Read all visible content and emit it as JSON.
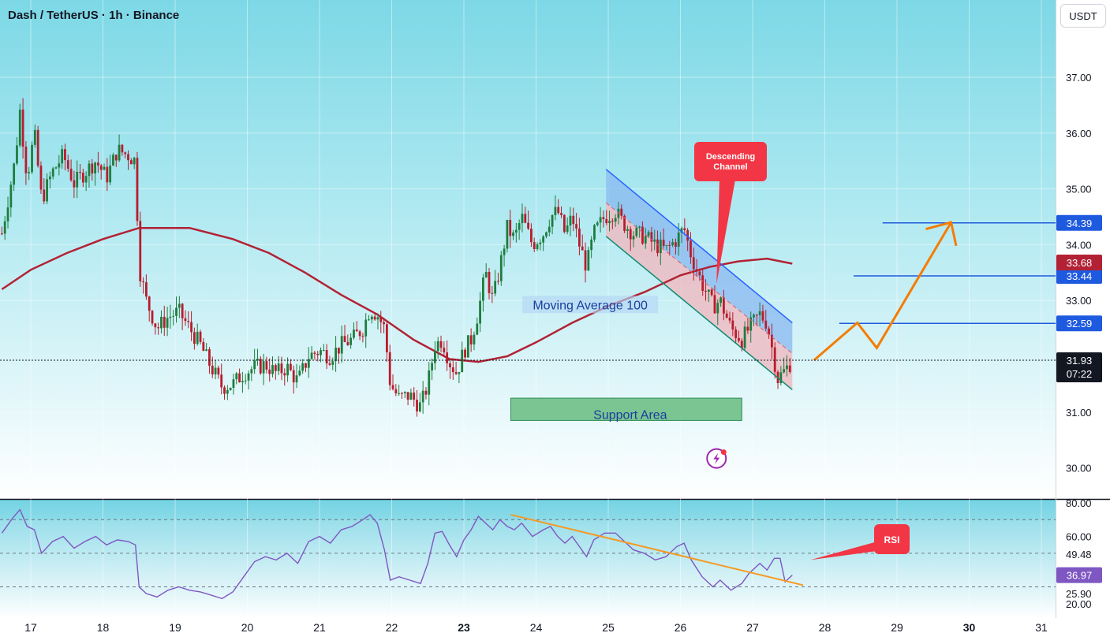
{
  "header": {
    "title": "Dash / TetherUS · 1h · Binance",
    "currency": "USDT"
  },
  "colors": {
    "background_top": "#7dd8e6",
    "background_bottom": "#ffffff",
    "candle_up": "#1e7d3e",
    "candle_down": "#b81c2c",
    "moving_average": "#b22234",
    "channel_upper_fill": "#8ab8f0",
    "channel_lower_fill": "#f0b9c0",
    "projection": "#f57c00",
    "target_lines": "#1e5adf",
    "support_fill": "#5fb878",
    "callout": "#f23645",
    "rsi_line": "#7e57c2",
    "rsi_trendline": "#f59a23"
  },
  "chart_data": [
    {
      "type": "candlestick",
      "title": "Dash / TetherUS · 1h · Binance",
      "x_tick_labels": [
        "17",
        "18",
        "19",
        "20",
        "21",
        "22",
        "23",
        "24",
        "25",
        "26",
        "27",
        "28",
        "29",
        "30",
        "31"
      ],
      "y_tick_labels": [
        "37.00",
        "36.00",
        "35.00",
        "34.00",
        "33.00",
        "31.00",
        "30.00"
      ],
      "ylim": [
        29.5,
        38.2
      ],
      "x_range_days": [
        16.6,
        31.0
      ],
      "price_path": [
        [
          16.6,
          34.2
        ],
        [
          16.78,
          35.5
        ],
        [
          16.85,
          36.4
        ],
        [
          16.95,
          35.2
        ],
        [
          17.05,
          36.0
        ],
        [
          17.15,
          34.8
        ],
        [
          17.3,
          35.3
        ],
        [
          17.45,
          35.6
        ],
        [
          17.6,
          35.1
        ],
        [
          17.75,
          35.3
        ],
        [
          17.9,
          35.5
        ],
        [
          18.05,
          35.2
        ],
        [
          18.2,
          35.7
        ],
        [
          18.35,
          35.6
        ],
        [
          18.45,
          35.5
        ],
        [
          18.5,
          33.6
        ],
        [
          18.6,
          33.0
        ],
        [
          18.75,
          32.5
        ],
        [
          18.9,
          32.7
        ],
        [
          19.05,
          32.8
        ],
        [
          19.2,
          32.5
        ],
        [
          19.35,
          32.2
        ],
        [
          19.5,
          31.8
        ],
        [
          19.65,
          31.45
        ],
        [
          19.8,
          31.5
        ],
        [
          19.95,
          31.7
        ],
        [
          20.1,
          31.8
        ],
        [
          20.25,
          31.85
        ],
        [
          20.4,
          31.7
        ],
        [
          20.55,
          31.8
        ],
        [
          20.7,
          31.55
        ],
        [
          20.85,
          32.0
        ],
        [
          21.0,
          32.1
        ],
        [
          21.15,
          32.0
        ],
        [
          21.3,
          32.2
        ],
        [
          21.45,
          32.3
        ],
        [
          21.6,
          32.5
        ],
        [
          21.7,
          32.85
        ],
        [
          21.8,
          32.75
        ],
        [
          21.9,
          32.5
        ],
        [
          21.98,
          31.5
        ],
        [
          22.1,
          31.25
        ],
        [
          22.25,
          31.3
        ],
        [
          22.4,
          31.1
        ],
        [
          22.5,
          31.5
        ],
        [
          22.6,
          32.2
        ],
        [
          22.7,
          32.3
        ],
        [
          22.8,
          31.9
        ],
        [
          22.9,
          31.7
        ],
        [
          23.0,
          32.1
        ],
        [
          23.1,
          32.3
        ],
        [
          23.2,
          32.8
        ],
        [
          23.3,
          33.5
        ],
        [
          23.4,
          33.0
        ],
        [
          23.5,
          33.6
        ],
        [
          23.6,
          34.3
        ],
        [
          23.7,
          34.1
        ],
        [
          23.8,
          34.5
        ],
        [
          23.95,
          34.0
        ],
        [
          24.1,
          34.2
        ],
        [
          24.2,
          34.5
        ],
        [
          24.3,
          34.6
        ],
        [
          24.4,
          34.2
        ],
        [
          24.5,
          34.5
        ],
        [
          24.6,
          34.0
        ],
        [
          24.7,
          33.6
        ],
        [
          24.8,
          34.2
        ],
        [
          24.95,
          34.5
        ],
        [
          25.1,
          34.6
        ],
        [
          25.2,
          34.4
        ],
        [
          25.35,
          34.2
        ],
        [
          25.5,
          34.15
        ],
        [
          25.65,
          34.0
        ],
        [
          25.8,
          33.9
        ],
        [
          25.95,
          34.1
        ],
        [
          26.05,
          34.3
        ],
        [
          26.15,
          33.8
        ],
        [
          26.3,
          33.3
        ],
        [
          26.45,
          32.9
        ],
        [
          26.55,
          33.0
        ],
        [
          26.7,
          32.5
        ],
        [
          26.85,
          32.3
        ],
        [
          26.95,
          32.5
        ],
        [
          27.1,
          32.75
        ],
        [
          27.2,
          32.6
        ],
        [
          27.35,
          31.6
        ],
        [
          27.45,
          31.75
        ],
        [
          27.55,
          31.93
        ]
      ],
      "last_price": "31.93",
      "countdown": "07:22",
      "moving_average_100": [
        [
          16.6,
          33.2
        ],
        [
          17.0,
          33.55
        ],
        [
          17.5,
          33.85
        ],
        [
          18.0,
          34.1
        ],
        [
          18.5,
          34.3
        ],
        [
          19.2,
          34.3
        ],
        [
          19.8,
          34.1
        ],
        [
          20.3,
          33.85
        ],
        [
          20.8,
          33.5
        ],
        [
          21.3,
          33.1
        ],
        [
          21.8,
          32.75
        ],
        [
          22.3,
          32.3
        ],
        [
          22.8,
          31.95
        ],
        [
          23.2,
          31.9
        ],
        [
          23.6,
          32.0
        ],
        [
          24.0,
          32.25
        ],
        [
          24.5,
          32.6
        ],
        [
          25.0,
          32.9
        ],
        [
          25.5,
          33.15
        ],
        [
          26.0,
          33.45
        ],
        [
          26.4,
          33.6
        ],
        [
          26.8,
          33.7
        ],
        [
          27.2,
          33.75
        ],
        [
          27.55,
          33.66
        ]
      ],
      "moving_average_value": "33.68",
      "descending_channel": {
        "upper": [
          [
            24.97,
            35.35
          ],
          [
            27.55,
            32.6
          ]
        ],
        "middle": [
          [
            24.97,
            34.75
          ],
          [
            27.55,
            32.05
          ]
        ],
        "lower": [
          [
            24.97,
            34.15
          ],
          [
            27.55,
            31.4
          ]
        ]
      },
      "support_area": {
        "x": [
          23.65,
          26.85
        ],
        "y": [
          30.85,
          31.25
        ],
        "label": "Support Area"
      },
      "moving_average_label": "Moving Average 100",
      "callout_label": "Descending Channel",
      "target_levels": [
        {
          "value": 34.39,
          "label": "34.39",
          "x_start": 28.8
        },
        {
          "value": 33.44,
          "label": "33.44",
          "x_start": 28.4
        },
        {
          "value": 32.59,
          "label": "32.59",
          "x_start": 28.2
        }
      ],
      "projection_path": [
        [
          27.85,
          31.93
        ],
        [
          28.45,
          32.6
        ],
        [
          28.72,
          32.15
        ],
        [
          29.75,
          34.4
        ]
      ],
      "projection_arrowhead": [
        [
          29.4,
          34.28
        ],
        [
          29.75,
          34.4
        ],
        [
          29.82,
          33.98
        ]
      ]
    },
    {
      "type": "line",
      "title": "RSI",
      "y_tick_labels": [
        "80.00",
        "60.00",
        "49.48",
        "25.90",
        "20.00"
      ],
      "ylim": [
        18,
        82
      ],
      "levels": [
        70,
        50,
        30
      ],
      "current_value": "36.97",
      "series": [
        {
          "values": [
            [
              16.6,
              62
            ],
            [
              16.75,
              71
            ],
            [
              16.85,
              76
            ],
            [
              16.95,
              66
            ],
            [
              17.05,
              64
            ],
            [
              17.15,
              50
            ],
            [
              17.3,
              57
            ],
            [
              17.45,
              60
            ],
            [
              17.6,
              53
            ],
            [
              17.75,
              57
            ],
            [
              17.9,
              60
            ],
            [
              18.05,
              55
            ],
            [
              18.2,
              58
            ],
            [
              18.35,
              57
            ],
            [
              18.45,
              55
            ],
            [
              18.5,
              30
            ],
            [
              18.6,
              26
            ],
            [
              18.75,
              24
            ],
            [
              18.9,
              28
            ],
            [
              19.05,
              30
            ],
            [
              19.2,
              28
            ],
            [
              19.35,
              27
            ],
            [
              19.5,
              25
            ],
            [
              19.65,
              23
            ],
            [
              19.8,
              27
            ],
            [
              19.95,
              36
            ],
            [
              20.1,
              45
            ],
            [
              20.25,
              48
            ],
            [
              20.4,
              46
            ],
            [
              20.55,
              50
            ],
            [
              20.7,
              44
            ],
            [
              20.85,
              57
            ],
            [
              21.0,
              60
            ],
            [
              21.15,
              56
            ],
            [
              21.3,
              64
            ],
            [
              21.45,
              66
            ],
            [
              21.6,
              70
            ],
            [
              21.7,
              73
            ],
            [
              21.8,
              68
            ],
            [
              21.9,
              52
            ],
            [
              21.98,
              34
            ],
            [
              22.1,
              36
            ],
            [
              22.25,
              34
            ],
            [
              22.4,
              32
            ],
            [
              22.5,
              44
            ],
            [
              22.6,
              62
            ],
            [
              22.7,
              63
            ],
            [
              22.8,
              55
            ],
            [
              22.9,
              48
            ],
            [
              23.0,
              58
            ],
            [
              23.1,
              64
            ],
            [
              23.2,
              72
            ],
            [
              23.3,
              68
            ],
            [
              23.4,
              64
            ],
            [
              23.5,
              70
            ],
            [
              23.6,
              66
            ],
            [
              23.7,
              64
            ],
            [
              23.8,
              68
            ],
            [
              23.95,
              60
            ],
            [
              24.1,
              64
            ],
            [
              24.2,
              66
            ],
            [
              24.3,
              60
            ],
            [
              24.4,
              56
            ],
            [
              24.5,
              60
            ],
            [
              24.6,
              54
            ],
            [
              24.7,
              48
            ],
            [
              24.8,
              58
            ],
            [
              24.95,
              62
            ],
            [
              25.1,
              62
            ],
            [
              25.2,
              58
            ],
            [
              25.35,
              52
            ],
            [
              25.5,
              50
            ],
            [
              25.65,
              46
            ],
            [
              25.8,
              48
            ],
            [
              25.95,
              54
            ],
            [
              26.05,
              56
            ],
            [
              26.15,
              46
            ],
            [
              26.3,
              36
            ],
            [
              26.45,
              30
            ],
            [
              26.55,
              34
            ],
            [
              26.7,
              28
            ],
            [
              26.85,
              32
            ],
            [
              26.95,
              38
            ],
            [
              27.1,
              44
            ],
            [
              27.2,
              40
            ],
            [
              27.3,
              47
            ],
            [
              27.38,
              47
            ],
            [
              27.45,
              33
            ],
            [
              27.55,
              37
            ]
          ]
        }
      ],
      "trendline": [
        [
          23.65,
          73
        ],
        [
          27.7,
          31
        ]
      ],
      "callout_label": "RSI"
    }
  ]
}
